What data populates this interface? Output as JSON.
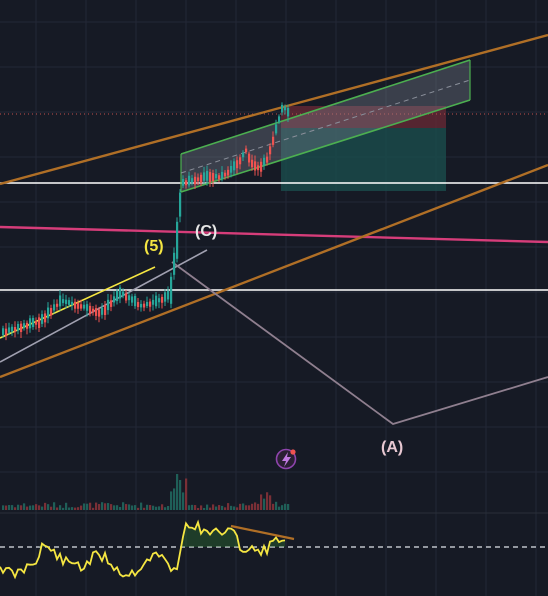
{
  "chart_data": {
    "type": "candlestick",
    "title": "",
    "xlabel": "",
    "ylabel": "",
    "colors": {
      "background": "#161a25",
      "grid": "#232836",
      "up": "#26a69a",
      "down": "#ef5350",
      "horizontal_lines": "#ffffff",
      "magenta_line": "#d63d7a",
      "channel": "#b06f26",
      "rising_channel": "#4caf50",
      "wave_path": "#8f7f8f",
      "wave_5_label": "#f5e642",
      "wave_label": "#e6e6e6",
      "wave_a_label": "#e8c8d2",
      "rsi": "#f5e642",
      "rsi_trend": "#b06f26",
      "lightning_badge": "#7b2d8e"
    },
    "wave_labels": [
      {
        "id": "wave-5-label",
        "text": "(5)"
      },
      {
        "id": "wave-c-label",
        "text": "(C)"
      },
      {
        "id": "wave-a-label",
        "text": "(A)"
      }
    ],
    "lightning_icon": "lightning-icon",
    "rsi_dashed_level": 50
  }
}
